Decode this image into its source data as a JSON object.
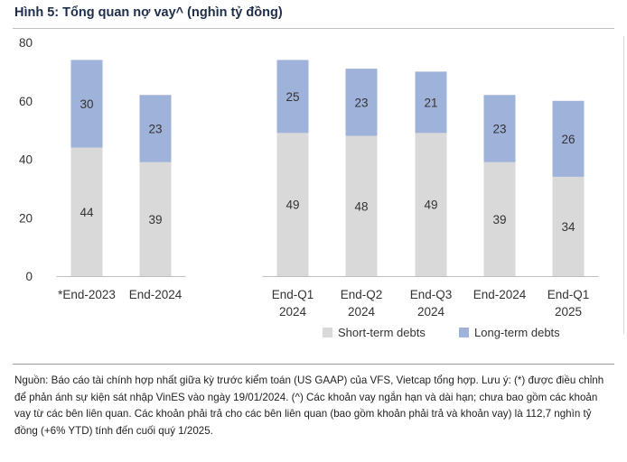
{
  "title": "Hình 5: Tổng quan nợ vay^ (nghìn tỷ đồng)",
  "source_note": "Nguồn: Báo cáo tài chính hợp nhất giữa kỳ trước kiểm toán (US GAAP) của VFS, Vietcap tổng hợp. Lưu ý: (*) được điều chỉnh để phản ánh sự kiện sát nhập VinES vào ngày 19/01/2024. (^) Các khoản vay ngắn hạn và dài hạn; chưa bao gồm các khoản vay từ các bên liên quan. Các khoản phải trả cho các bên liên quan (bao gồm khoản phải trả và khoản vay) là 112,7 nghìn tỷ đồng (+6% YTD) tính đến cuối quý 1/2025.",
  "legend": {
    "short": "Short-term debts",
    "long": "Long-term debts"
  },
  "colors": {
    "short_term": "#d9d9d9",
    "long_term": "#9fb2d9",
    "title": "#1f2e4a"
  },
  "chart_data": {
    "type": "bar",
    "stacked": true,
    "categories": [
      [
        "*End-2023"
      ],
      [
        "End-2024"
      ],
      [
        "End-Q1",
        "2024"
      ],
      [
        "End-Q2",
        "2024"
      ],
      [
        "End-Q3",
        "2024"
      ],
      [
        "End-2024"
      ],
      [
        "End-Q1",
        "2025"
      ]
    ],
    "groups": [
      [
        0,
        1
      ],
      [
        2,
        3,
        4,
        5,
        6
      ]
    ],
    "series": [
      {
        "name": "Short-term debts",
        "values": [
          44,
          39,
          49,
          48,
          49,
          39,
          34
        ]
      },
      {
        "name": "Long-term debts",
        "values": [
          30,
          23,
          25,
          23,
          21,
          23,
          26
        ]
      }
    ],
    "yticks": [
      0,
      20,
      40,
      60,
      80
    ],
    "ylim": [
      0,
      80
    ],
    "grid": false,
    "legend_position": "bottom"
  }
}
